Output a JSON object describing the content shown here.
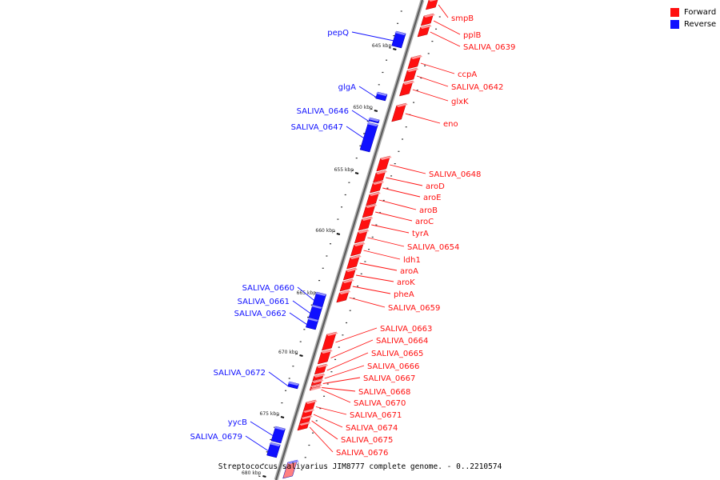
{
  "caption": "Streptococcus salivarius JIM8777 complete genome. - 0..2210574",
  "legend": [
    {
      "label": "Forward",
      "color": "#ff1010"
    },
    {
      "label": "Reverse",
      "color": "#1010ff"
    }
  ],
  "scale_labels": [
    "645 kbp",
    "650 kbp",
    "655 kbp",
    "660 kbp",
    "665 kbp",
    "670 kbp",
    "675 kbp",
    "680 kbp"
  ],
  "forward_genes": [
    "smpB",
    "pplB",
    "SALIVA_0639",
    "ccpA",
    "SALIVA_0642",
    "glxK",
    "eno",
    "SALIVA_0648",
    "aroD",
    "aroE",
    "aroB",
    "aroC",
    "tyrA",
    "SALIVA_0654",
    "ldh1",
    "aroA",
    "aroK",
    "pheA",
    "SALIVA_0659",
    "SALIVA_0663",
    "SALIVA_0664",
    "SALIVA_0665",
    "SALIVA_0666",
    "SALIVA_0667",
    "SALIVA_0668",
    "SALIVA_0670",
    "SALIVA_0671",
    "SALIVA_0674",
    "SALIVA_0675",
    "SALIVA_0676"
  ],
  "reverse_genes": [
    "pepQ",
    "glgA",
    "SALIVA_0646",
    "SALIVA_0647",
    "SALIVA_0660",
    "SALIVA_0661",
    "SALIVA_0662",
    "SALIVA_0672",
    "yycB",
    "SALIVA_0679"
  ]
}
